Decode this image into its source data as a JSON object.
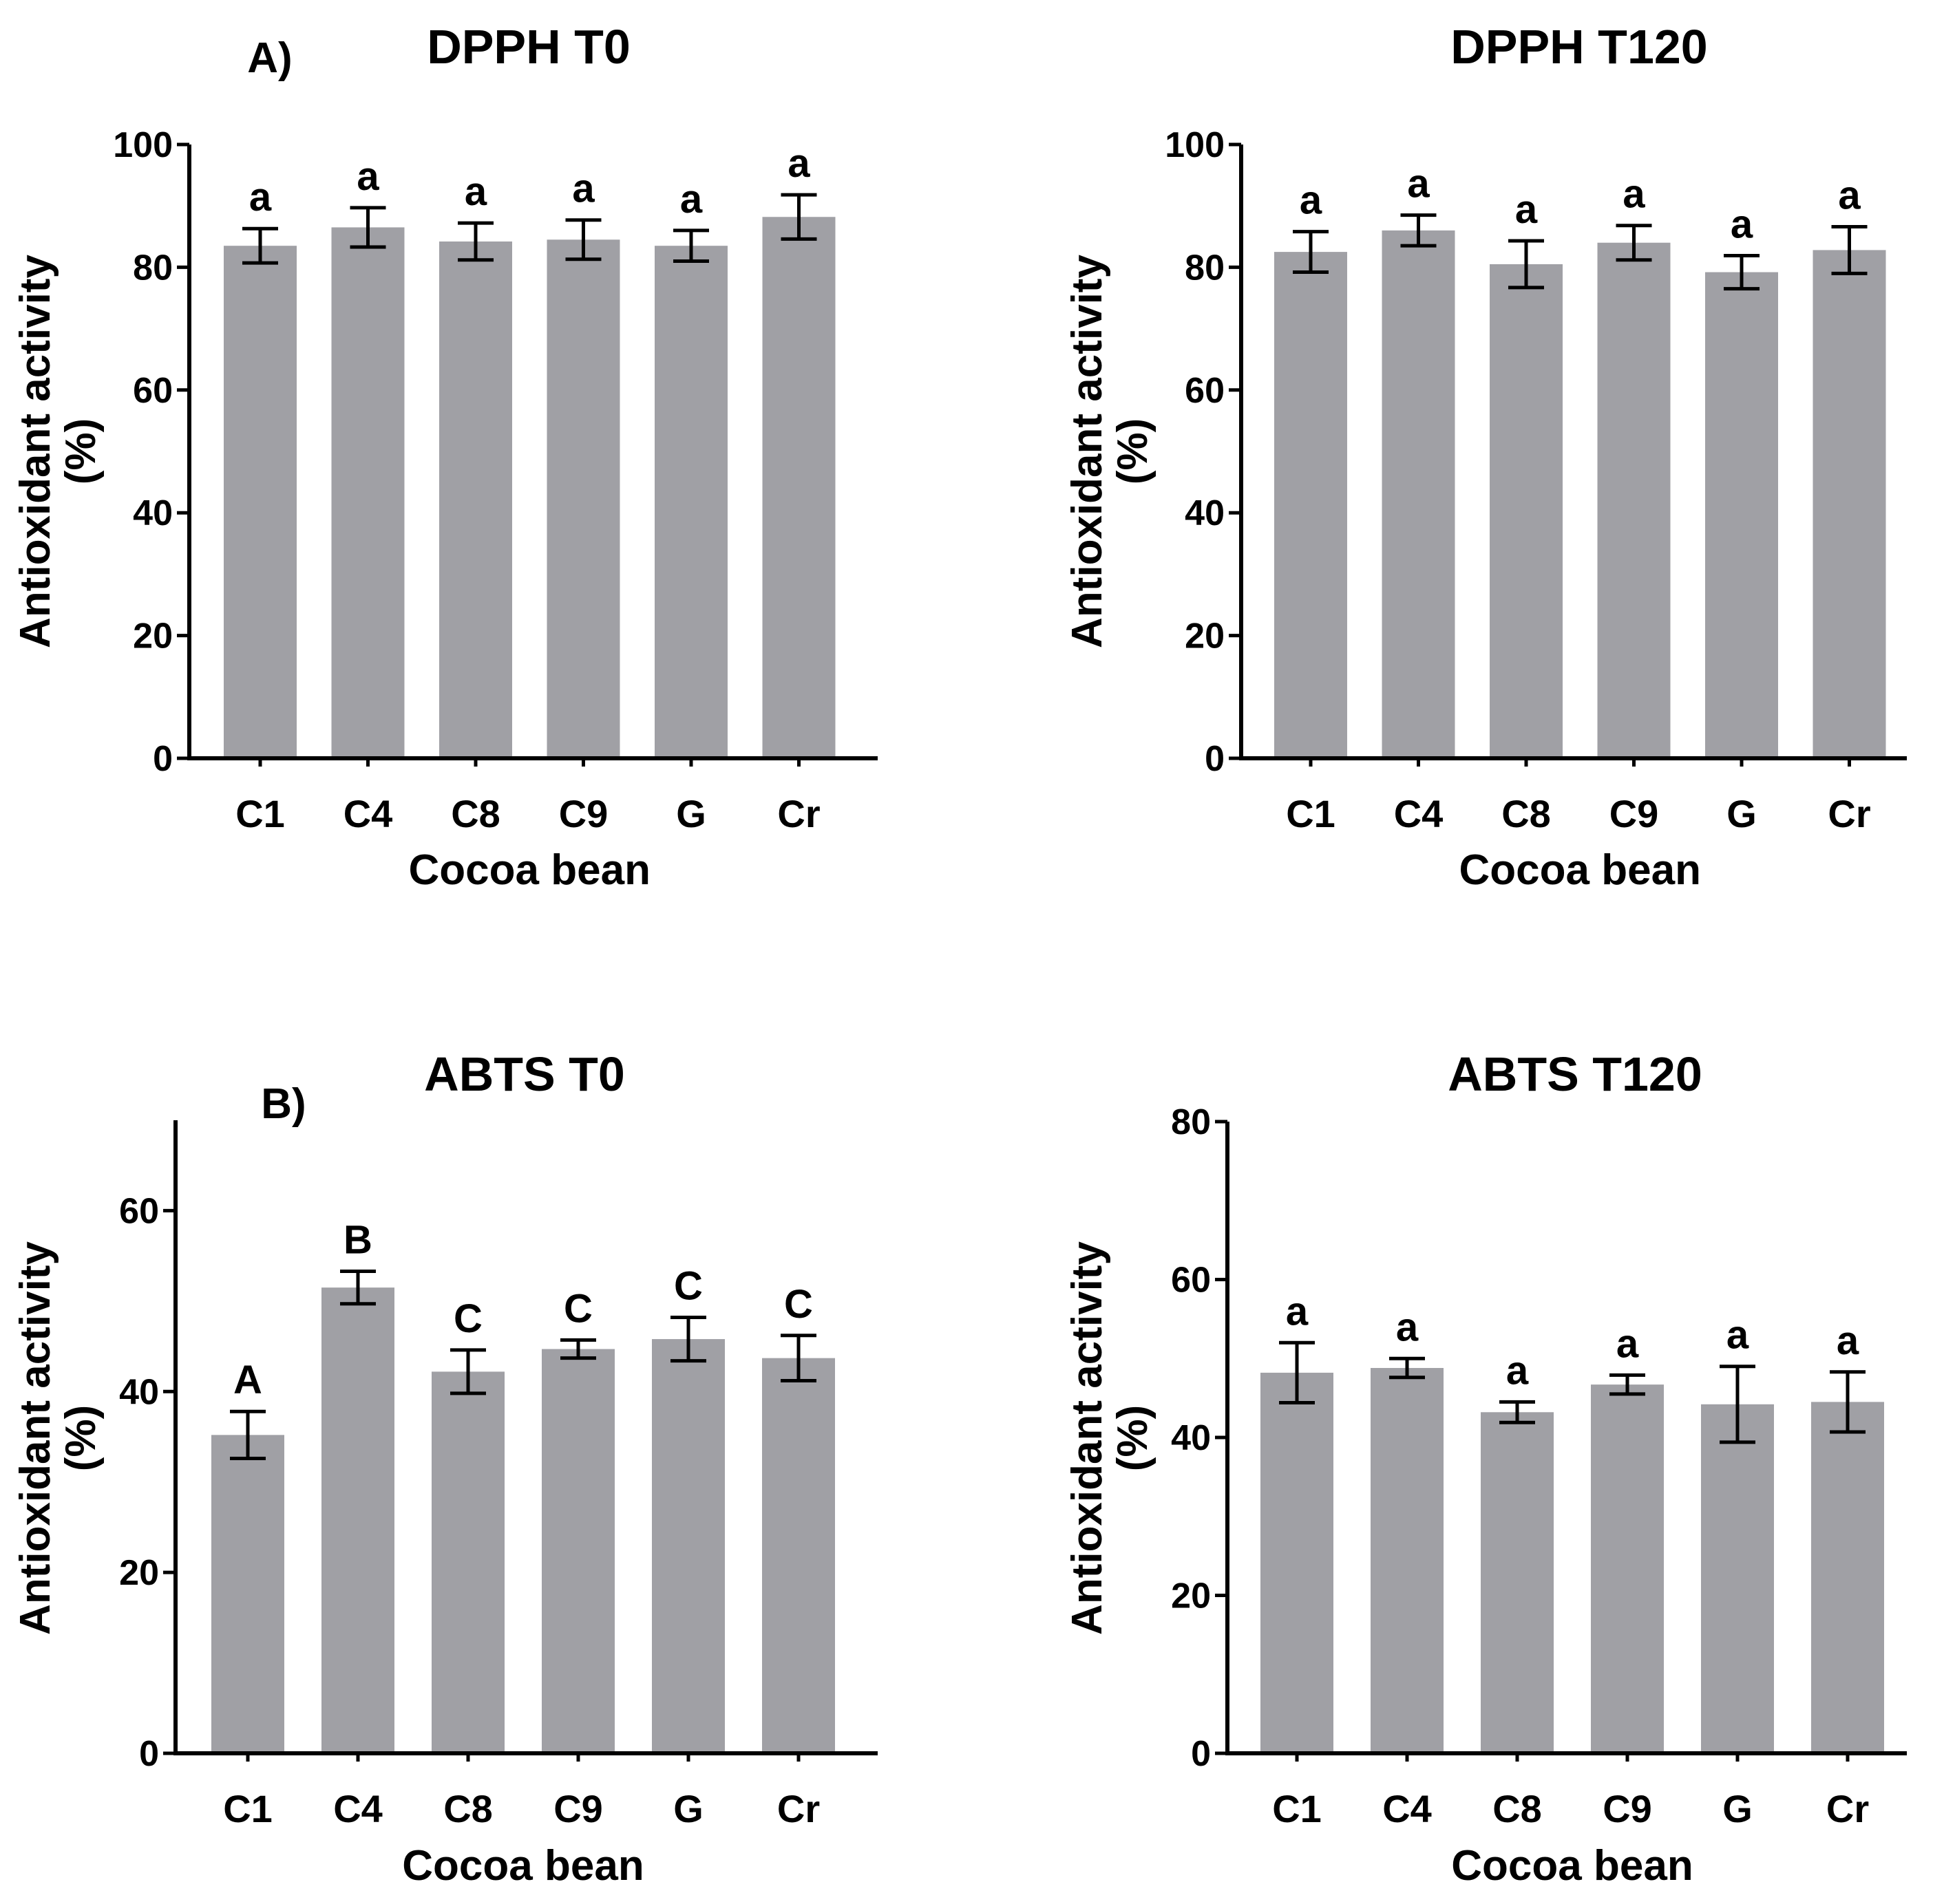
{
  "chart_data": [
    {
      "id": "dpph-t0",
      "type": "bar",
      "panel_label": "A)",
      "title": "DPPH T0",
      "xlabel": "Cocoa bean",
      "ylabel": [
        "Antioxidant activity",
        "(%)"
      ],
      "ylim": [
        0,
        100
      ],
      "yticks": [
        0,
        20,
        40,
        60,
        80,
        100
      ],
      "categories": [
        "C1",
        "C4",
        "C8",
        "C9",
        "G",
        "Cr"
      ],
      "values": [
        83.5,
        86.5,
        84.2,
        84.5,
        83.5,
        88.2
      ],
      "errors": [
        2.8,
        3.2,
        3.0,
        3.2,
        2.5,
        3.6
      ],
      "significance": [
        "a",
        "a",
        "a",
        "a",
        "a",
        "a"
      ],
      "bar_color": "#a0a0a5"
    },
    {
      "id": "dpph-t120",
      "type": "bar",
      "panel_label": "",
      "title": "DPPH T120",
      "xlabel": "Cocoa bean",
      "ylabel": [
        "Antioxidant activity",
        "(%)"
      ],
      "ylim": [
        0,
        100
      ],
      "yticks": [
        0,
        20,
        40,
        60,
        80,
        100
      ],
      "categories": [
        "C1",
        "C4",
        "C8",
        "C9",
        "G",
        "Cr"
      ],
      "values": [
        82.5,
        86.0,
        80.5,
        84.0,
        79.2,
        82.8
      ],
      "errors": [
        3.3,
        2.5,
        3.8,
        2.8,
        2.7,
        3.8
      ],
      "significance": [
        "a",
        "a",
        "a",
        "a",
        "a",
        "a"
      ],
      "bar_color": "#a0a0a5"
    },
    {
      "id": "abts-t0",
      "type": "bar",
      "panel_label": "B)",
      "title": "ABTS T0",
      "xlabel": "Cocoa bean",
      "ylabel": [
        "Antioxidant activity",
        "(%)"
      ],
      "ylim": [
        0,
        70
      ],
      "yticks": [
        0,
        20,
        40,
        60
      ],
      "categories": [
        "C1",
        "C4",
        "C8",
        "C9",
        "G",
        "Cr"
      ],
      "values": [
        35.2,
        51.5,
        42.2,
        44.7,
        45.8,
        43.7
      ],
      "errors": [
        2.6,
        1.8,
        2.4,
        1.0,
        2.4,
        2.5
      ],
      "significance": [
        "A",
        "B",
        "C",
        "C",
        "C",
        "C"
      ],
      "bar_color": "#a0a0a5"
    },
    {
      "id": "abts-t120",
      "type": "bar",
      "panel_label": "",
      "title": "ABTS T120",
      "xlabel": "Cocoa bean",
      "ylabel": [
        "Antioxidant activity",
        "(%)"
      ],
      "ylim": [
        0,
        80
      ],
      "yticks": [
        0,
        20,
        40,
        60,
        80
      ],
      "categories": [
        "C1",
        "C4",
        "C8",
        "C9",
        "G",
        "Cr"
      ],
      "values": [
        48.2,
        48.8,
        43.2,
        46.7,
        44.2,
        44.5
      ],
      "errors": [
        3.8,
        1.2,
        1.3,
        1.2,
        4.8,
        3.8
      ],
      "significance": [
        "a",
        "a",
        "a",
        "a",
        "a",
        "a"
      ],
      "bar_color": "#a0a0a5"
    }
  ]
}
